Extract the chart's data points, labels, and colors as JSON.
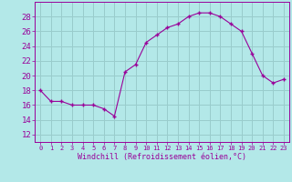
{
  "x": [
    0,
    1,
    2,
    3,
    4,
    5,
    6,
    7,
    8,
    9,
    10,
    11,
    12,
    13,
    14,
    15,
    16,
    17,
    18,
    19,
    20,
    21,
    22,
    23
  ],
  "y": [
    18,
    16.5,
    16.5,
    16,
    16,
    16,
    15.5,
    14.5,
    20.5,
    21.5,
    24.5,
    25.5,
    26.5,
    27,
    28,
    28.5,
    28.5,
    28,
    27,
    26,
    23,
    20,
    19,
    19.5
  ],
  "line_color": "#990099",
  "marker": "+",
  "background_color": "#b3e8e8",
  "grid_color": "#99cccc",
  "xlabel": "Windchill (Refroidissement éolien,°C)",
  "xlabel_color": "#990099",
  "tick_color": "#990099",
  "ylim": [
    11,
    30
  ],
  "yticks": [
    12,
    14,
    16,
    18,
    20,
    22,
    24,
    26,
    28
  ],
  "xlim": [
    -0.5,
    23.5
  ],
  "xticks": [
    0,
    1,
    2,
    3,
    4,
    5,
    6,
    7,
    8,
    9,
    10,
    11,
    12,
    13,
    14,
    15,
    16,
    17,
    18,
    19,
    20,
    21,
    22,
    23
  ]
}
